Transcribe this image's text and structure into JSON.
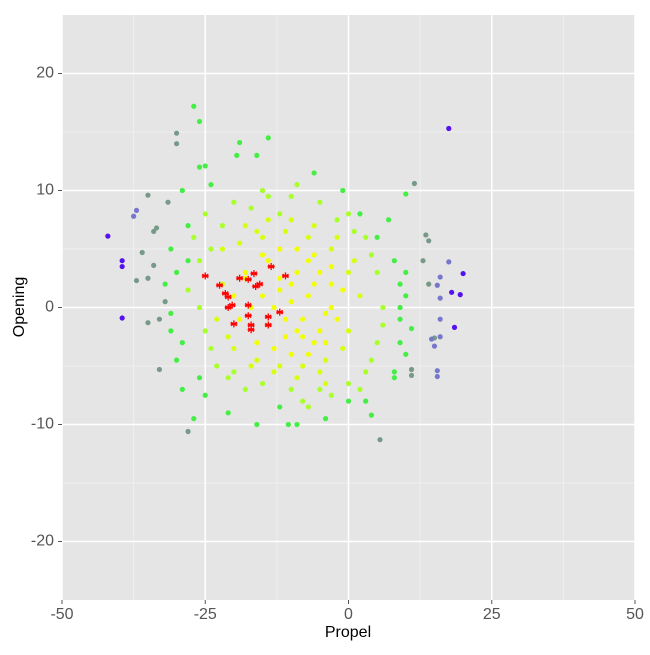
{
  "chart_data": {
    "type": "scatter",
    "x_label": "Propel",
    "y_label": "Opening",
    "xlim": [
      -50,
      50
    ],
    "ylim": [
      -25,
      25
    ],
    "xticks": [
      -50,
      -25,
      0,
      25,
      50
    ],
    "yticks": [
      -20,
      -10,
      0,
      10,
      20
    ],
    "grid": true,
    "minor_grid": true,
    "series": [
      {
        "color": "#a8ff2a",
        "marker": "circle",
        "x": [
          -25,
          -20,
          -15,
          -10,
          -5,
          0,
          3,
          5,
          6,
          5,
          3,
          0,
          -5,
          -10,
          -15,
          -20,
          -24,
          -26,
          -26,
          -22,
          -12,
          -2,
          4,
          6,
          -8,
          -18,
          -25,
          -27,
          2,
          -14,
          -24,
          -3,
          -23,
          -17,
          -7,
          1,
          4,
          -28,
          -21,
          -9
        ],
        "y": [
          8,
          9,
          10,
          9.5,
          9,
          8,
          6,
          3,
          0,
          -3,
          -5.5,
          -6.5,
          -7,
          -7,
          -6.5,
          -5.5,
          -3.5,
          0,
          4,
          7,
          8,
          7.5,
          4.5,
          -1.5,
          -8,
          -7,
          -2,
          6,
          -7,
          9.5,
          5,
          -7.5,
          -5,
          8.5,
          -8.5,
          6.5,
          -4.5,
          1.5,
          -6,
          10.5
        ]
      },
      {
        "color": "#d6ff10",
        "marker": "circle",
        "x": [
          -22,
          -18,
          -14,
          -10,
          -6,
          -2,
          1,
          2,
          0,
          -4,
          -8,
          -12,
          -16,
          -20,
          -23,
          -22,
          -19,
          -15,
          -11,
          -7,
          -3,
          0,
          -1,
          -5,
          -9,
          -13,
          -17,
          -21,
          -4,
          -16
        ],
        "y": [
          5,
          7,
          7.5,
          7.5,
          7,
          6,
          4,
          1,
          -2,
          -4.5,
          -5,
          -5,
          -4.5,
          -3.5,
          -1,
          2,
          5.5,
          6,
          6.5,
          6,
          5,
          3,
          -3.5,
          -5.5,
          -6,
          -5.5,
          -5,
          -2.5,
          -6.5,
          6.5
        ]
      },
      {
        "color": "#f2ff00",
        "marker": "circle",
        "x": [
          -18,
          -15,
          -12,
          -9,
          -6,
          -3,
          -1,
          -2,
          -4,
          -7,
          -10,
          -13,
          -16,
          -19,
          -20,
          -17,
          -14,
          -11,
          -8,
          -5,
          -3,
          -6,
          -9,
          -12,
          -15,
          -18,
          -13,
          -10,
          -7,
          -4,
          -8,
          -11,
          -14,
          -5,
          -9,
          -6,
          -12,
          -3,
          -7,
          -10
        ],
        "y": [
          3,
          4.5,
          5,
          5,
          4.5,
          3.5,
          1.5,
          -1,
          -3,
          -4,
          -4,
          -3.5,
          -3,
          -1,
          1,
          0,
          -1.5,
          -2.5,
          -2.5,
          -2,
          0,
          2,
          3,
          2.5,
          1,
          2.5,
          0,
          0.5,
          1,
          -0.5,
          -1,
          -1,
          4,
          3,
          -2,
          -3,
          1.5,
          2,
          4,
          2
        ]
      },
      {
        "color": "#44ee44",
        "marker": "circle",
        "x": [
          -27,
          -26,
          -14,
          -19,
          -19.5,
          -25,
          -26,
          -16,
          -31,
          -30,
          -31,
          -30,
          -29,
          -27,
          -26,
          -28,
          -29,
          -24,
          -6,
          -1,
          2,
          5,
          8,
          9,
          9,
          9,
          9,
          10,
          8,
          3,
          4,
          -4,
          -9,
          -10.5,
          -16,
          -21,
          -25,
          10,
          7,
          -32,
          -31,
          10,
          10,
          11,
          8,
          -12,
          0,
          -28,
          -29
        ],
        "y": [
          17.2,
          15.9,
          14.5,
          14.1,
          13,
          12.1,
          12,
          13,
          5,
          3,
          -2,
          -4.5,
          -7,
          -9.5,
          -6,
          7,
          10,
          10.5,
          11.5,
          10,
          8,
          6,
          4,
          2,
          -1,
          -3,
          0,
          -4,
          -5.5,
          -8,
          -9.2,
          -9.5,
          -10,
          -10,
          -10,
          -9,
          -7.5,
          9.7,
          7.5,
          2,
          -0.5,
          3,
          1,
          -1.8,
          -6,
          -8.5,
          -8,
          4,
          -3
        ]
      },
      {
        "color": "#779988",
        "marker": "circle",
        "x": [
          -35,
          -36,
          -35,
          -37,
          -34,
          -35,
          -33,
          -33,
          -30,
          -30,
          -31.5,
          11.5,
          13.5,
          14,
          13,
          14,
          15,
          11,
          11,
          -34,
          -33.5,
          -32,
          5.5,
          -28
        ],
        "y": [
          9.6,
          4.7,
          2.5,
          2.3,
          3.6,
          -1.3,
          -1,
          -5.3,
          14.9,
          14,
          9,
          10.6,
          6.2,
          5.7,
          4,
          2,
          -2.6,
          -5.8,
          -5.3,
          6.5,
          6.8,
          0.5,
          -11.3,
          -10.6
        ]
      },
      {
        "color": "#7777cc",
        "marker": "circle",
        "x": [
          -37,
          -37.5,
          14.5,
          15,
          15.5,
          15.5,
          16,
          16,
          17.5,
          16,
          15.5,
          16
        ],
        "y": [
          8.3,
          7.8,
          -2.7,
          -3.3,
          -5.4,
          -5.9,
          -1,
          -2.5,
          3.9,
          0.8,
          1.9,
          2.6
        ]
      },
      {
        "color": "#5511ee",
        "marker": "circle",
        "x": [
          -42,
          -39.5,
          -39.5,
          -39.5,
          20,
          19.5,
          18.5,
          17.5,
          18
        ],
        "y": [
          6.1,
          4,
          3.5,
          -0.9,
          2.9,
          1.1,
          -1.7,
          15.3,
          1.3
        ]
      },
      {
        "color": "#ff0000",
        "marker": "star",
        "x": [
          -25,
          -22.5,
          -21.5,
          -21,
          -21,
          -20.3,
          -20,
          -19,
          -17.5,
          -17.5,
          -17.5,
          -17,
          -17,
          -16.5,
          -16.2,
          -15.5,
          -14,
          -14,
          -13.5,
          -12,
          -11
        ],
        "y": [
          2.7,
          1.9,
          1.2,
          0.9,
          0,
          0.2,
          -1.4,
          2.5,
          2.4,
          0.2,
          -0.7,
          -1.5,
          -1.9,
          2.9,
          1.8,
          2,
          -0.8,
          -1.5,
          3.5,
          -0.4,
          2.7
        ]
      }
    ]
  }
}
